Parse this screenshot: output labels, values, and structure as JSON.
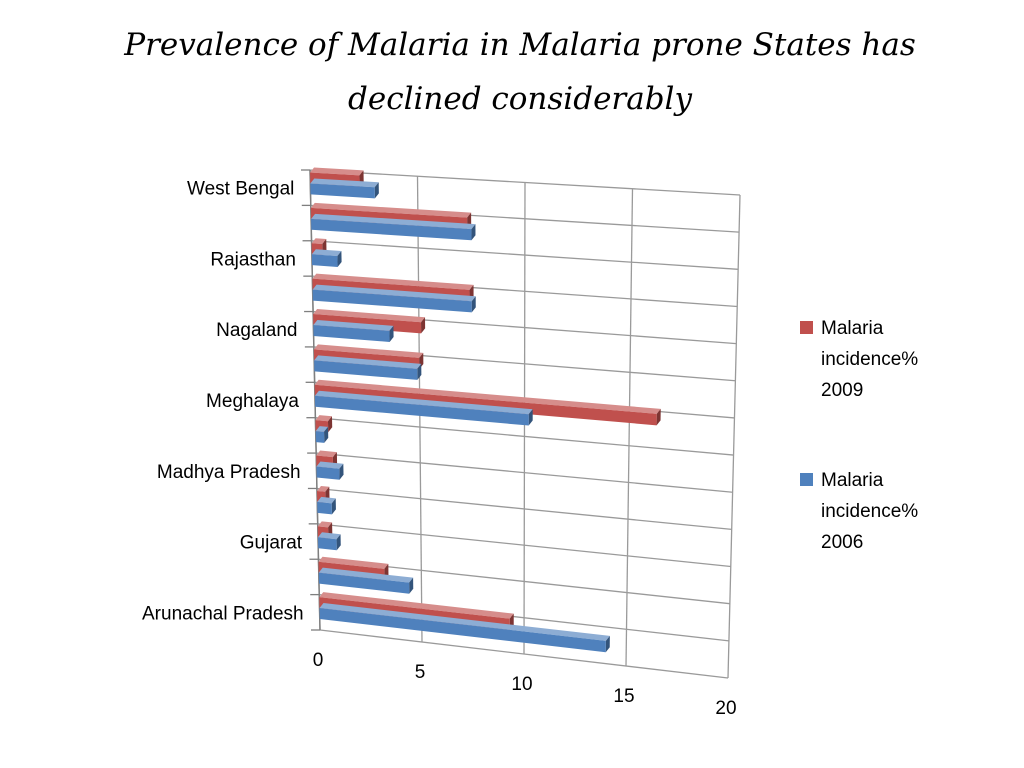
{
  "slide": {
    "title": "Prevalence of Malaria in Malaria prone States has declined considerably"
  },
  "chart_data": {
    "type": "bar",
    "orientation": "horizontal",
    "style": "3d",
    "categories": [
      "West Bengal",
      "",
      "Rajasthan",
      "",
      "Nagaland",
      "",
      "Meghalaya",
      "",
      "Madhya Pradesh",
      "",
      "Gujarat",
      "",
      "Arunachal Pradesh"
    ],
    "series": [
      {
        "name": "Malaria incidence% 2009",
        "legend_lines": [
          "Malaria",
          "incidence%",
          "2009"
        ],
        "color": "#c0504d",
        "values": [
          2.3,
          7.3,
          0.5,
          7.4,
          5.1,
          5.0,
          16.3,
          0.6,
          0.8,
          0.4,
          0.5,
          3.2,
          9.3
        ]
      },
      {
        "name": "Malaria incidence% 2006",
        "legend_lines": [
          "Malaria",
          "incidence%",
          "2006"
        ],
        "color": "#4f81bd",
        "values": [
          3.0,
          7.5,
          1.2,
          7.5,
          3.6,
          4.9,
          10.2,
          0.4,
          1.1,
          0.7,
          0.9,
          4.4,
          14.0
        ]
      }
    ],
    "xlim": [
      0,
      20
    ],
    "xticks": [
      "0",
      "5",
      "10",
      "15",
      "20"
    ],
    "grid": true,
    "legend_position": "right"
  }
}
